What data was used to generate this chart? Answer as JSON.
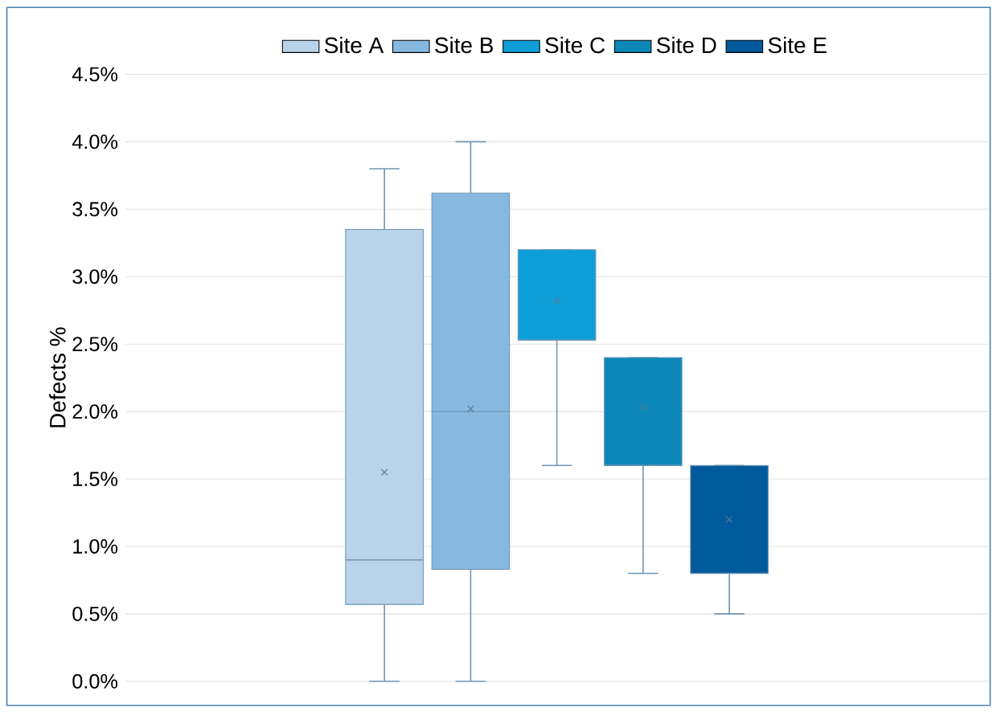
{
  "chart_data": {
    "type": "box",
    "ylabel": "Defects %",
    "categories": [
      null
    ],
    "series": [
      {
        "name": "Site A",
        "color": "#b8d3ea",
        "boxes": [
          {
            "low": 0,
            "q1": 0.57,
            "median": 0.9,
            "q3": 3.35,
            "high": 3.8,
            "mean": 1.55
          }
        ]
      },
      {
        "name": "Site B",
        "color": "#86b8e0",
        "boxes": [
          {
            "low": 0,
            "q1": 0.83,
            "median": 2.0,
            "q3": 3.62,
            "high": 4.0,
            "mean": 2.02
          }
        ]
      },
      {
        "name": "Site C",
        "color": "#0f9fd8",
        "boxes": [
          {
            "low": 1.6,
            "q1": 2.53,
            "median": 2.53,
            "q3": 3.2,
            "high": 3.2,
            "mean": 2.82
          }
        ]
      },
      {
        "name": "Site D",
        "color": "#0c87b8",
        "boxes": [
          {
            "low": 0.8,
            "q1": 1.6,
            "median": 1.6,
            "q3": 2.4,
            "high": 2.4,
            "mean": 2.03
          }
        ]
      },
      {
        "name": "Site E",
        "color": "#005a9c",
        "boxes": [
          {
            "low": 0.5,
            "q1": 0.8,
            "median": 0.8,
            "q3": 1.6,
            "high": 1.6,
            "mean": 1.2
          }
        ]
      }
    ],
    "ylim": [
      0,
      4.5
    ],
    "yticks": [
      {
        "value": 0,
        "label": "0.0%"
      },
      {
        "value": 0.5,
        "label": "0.5%"
      },
      {
        "value": 1,
        "label": "1.0%"
      },
      {
        "value": 1.5,
        "label": "1.5%"
      },
      {
        "value": 2,
        "label": "2.0%"
      },
      {
        "value": 2.5,
        "label": "2.5%"
      },
      {
        "value": 3,
        "label": "3.0%"
      },
      {
        "value": 3.5,
        "label": "3.5%"
      },
      {
        "value": 4,
        "label": "4.0%"
      },
      {
        "value": 4.5,
        "label": "4.5%"
      }
    ],
    "grid": "y",
    "legend": "top"
  }
}
